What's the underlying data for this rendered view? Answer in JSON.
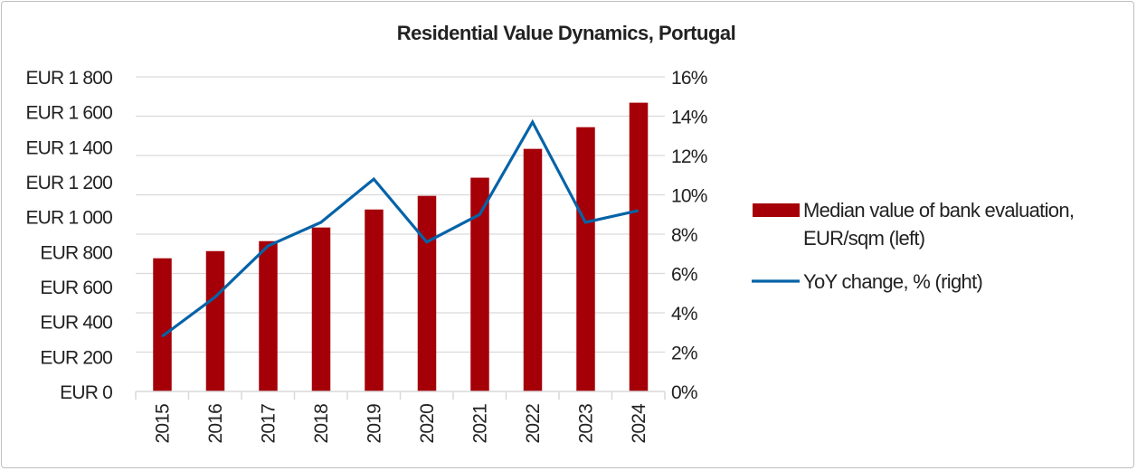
{
  "chart_data": {
    "type": "bar+line",
    "title": "Residential Value Dynamics, Portugal",
    "categories": [
      "2015",
      "2016",
      "2017",
      "2018",
      "2019",
      "2020",
      "2021",
      "2022",
      "2023",
      "2024"
    ],
    "series": [
      {
        "name": "Median value of bank evaluation, EUR/sqm (left)",
        "legend_lines": [
          "Median value of bank evaluation,",
          "EUR/sqm (left)"
        ],
        "type": "bar",
        "axis": "left",
        "color": "#A50008",
        "values": [
          762,
          803,
          860,
          938,
          1041,
          1119,
          1223,
          1388,
          1512,
          1652
        ]
      },
      {
        "name": "YoY change, % (right)",
        "legend_lines": [
          "YoY change, % (right)"
        ],
        "type": "line",
        "axis": "right",
        "color": "#0563A8",
        "values": [
          2.8,
          4.8,
          7.4,
          8.6,
          10.8,
          7.6,
          9.0,
          13.7,
          8.6,
          9.2
        ]
      }
    ],
    "left_axis": {
      "ylim": [
        0,
        1800
      ],
      "ticks": [
        "EUR 0",
        "EUR 200",
        "EUR 400",
        "EUR 600",
        "EUR 800",
        "EUR 1 000",
        "EUR 1 200",
        "EUR 1 400",
        "EUR 1 600",
        "EUR 1 800"
      ]
    },
    "right_axis": {
      "ylim": [
        0,
        16
      ],
      "ticks": [
        "0%",
        "2%",
        "4%",
        "6%",
        "8%",
        "10%",
        "12%",
        "14%",
        "16%"
      ]
    },
    "grid": true,
    "legend_position": "right"
  }
}
